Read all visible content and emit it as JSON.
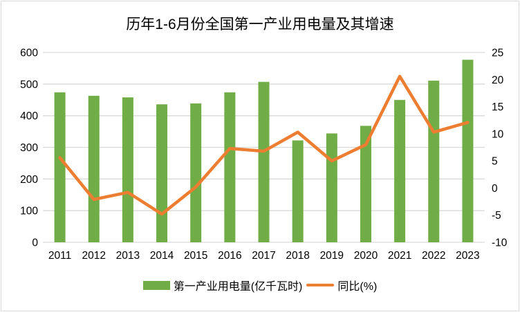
{
  "window": {
    "background_color": "#ffffff",
    "frame_border_color": "#d9d9d9"
  },
  "chart_data": {
    "type": "combo-bar-line",
    "title": "历年1-6月份全国第一产业用电量及其增速",
    "categories": [
      "2011",
      "2012",
      "2013",
      "2014",
      "2015",
      "2016",
      "2017",
      "2018",
      "2019",
      "2020",
      "2021",
      "2022",
      "2023"
    ],
    "series": [
      {
        "name": "第一产业用电量(亿千瓦时)",
        "type": "bar",
        "axis": "left",
        "color": "#70AD47",
        "values": [
          474,
          463,
          458,
          436,
          439,
          474,
          507,
          322,
          344,
          368,
          450,
          511,
          577
        ]
      },
      {
        "name": "同比(%)",
        "type": "line",
        "axis": "right",
        "color": "#ED7D31",
        "values": [
          5.6,
          -2.1,
          -0.8,
          -4.8,
          0.2,
          7.3,
          6.8,
          10.3,
          5.0,
          8.0,
          20.6,
          10.3,
          12.1
        ]
      }
    ],
    "left_axis": {
      "min": 0,
      "max": 600,
      "tick_step": 100,
      "tick_labels": [
        "0",
        "100",
        "200",
        "300",
        "400",
        "500",
        "600"
      ]
    },
    "right_axis": {
      "min": -10,
      "max": 25,
      "tick_step": 5,
      "tick_labels": [
        "-10",
        "-5",
        "0",
        "5",
        "10",
        "15",
        "20",
        "25"
      ]
    },
    "gridlines": "horizontal",
    "gridline_color": "#d9d9d9",
    "axis_text_color": "#000000",
    "legend_position": "bottom"
  }
}
